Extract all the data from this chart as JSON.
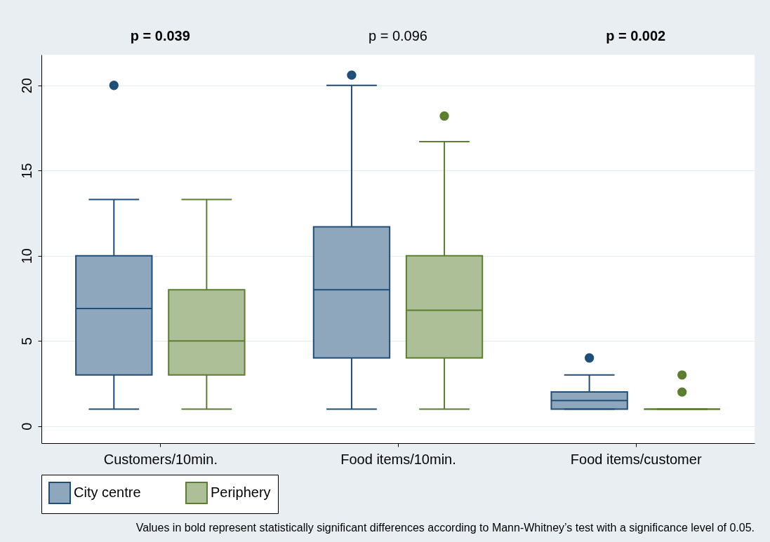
{
  "chart_data": {
    "type": "box",
    "categories": [
      "Customers/10min.",
      "Food items/10min.",
      "Food items/customer"
    ],
    "series": [
      {
        "name": "City centre",
        "color": "#1f4e79",
        "boxes": [
          {
            "low": 1,
            "q1": 3,
            "median": 6.9,
            "q3": 10,
            "high": 13.3,
            "outliers": [
              20
            ]
          },
          {
            "low": 1,
            "q1": 4,
            "median": 8,
            "q3": 11.7,
            "high": 20,
            "outliers": [
              20.6
            ]
          },
          {
            "low": 1,
            "q1": 1,
            "median": 1.5,
            "q3": 2,
            "high": 3,
            "outliers": [
              4
            ]
          }
        ]
      },
      {
        "name": "Periphery",
        "color": "#5b7f2e",
        "boxes": [
          {
            "low": 1,
            "q1": 3,
            "median": 5,
            "q3": 8,
            "high": 13.3
          },
          {
            "low": 1,
            "q1": 4,
            "median": 6.8,
            "q3": 10,
            "high": 16.7,
            "outliers": [
              18.2
            ]
          },
          {
            "low": 1,
            "q1": 1,
            "median": 1,
            "q3": 1,
            "high": 1,
            "outliers": [
              2,
              3
            ]
          }
        ]
      }
    ],
    "ylim": [
      -1,
      21.8
    ],
    "yticks": [
      0,
      5,
      10,
      15,
      20
    ],
    "grid": "y",
    "legend": "bottom",
    "annotations": [
      "p = 0.039",
      "p = 0.096",
      "p = 0.002",
      "Values in bold represent statistically significant differences according to Mann-Whitney’s test with a significance level of 0.05."
    ]
  }
}
